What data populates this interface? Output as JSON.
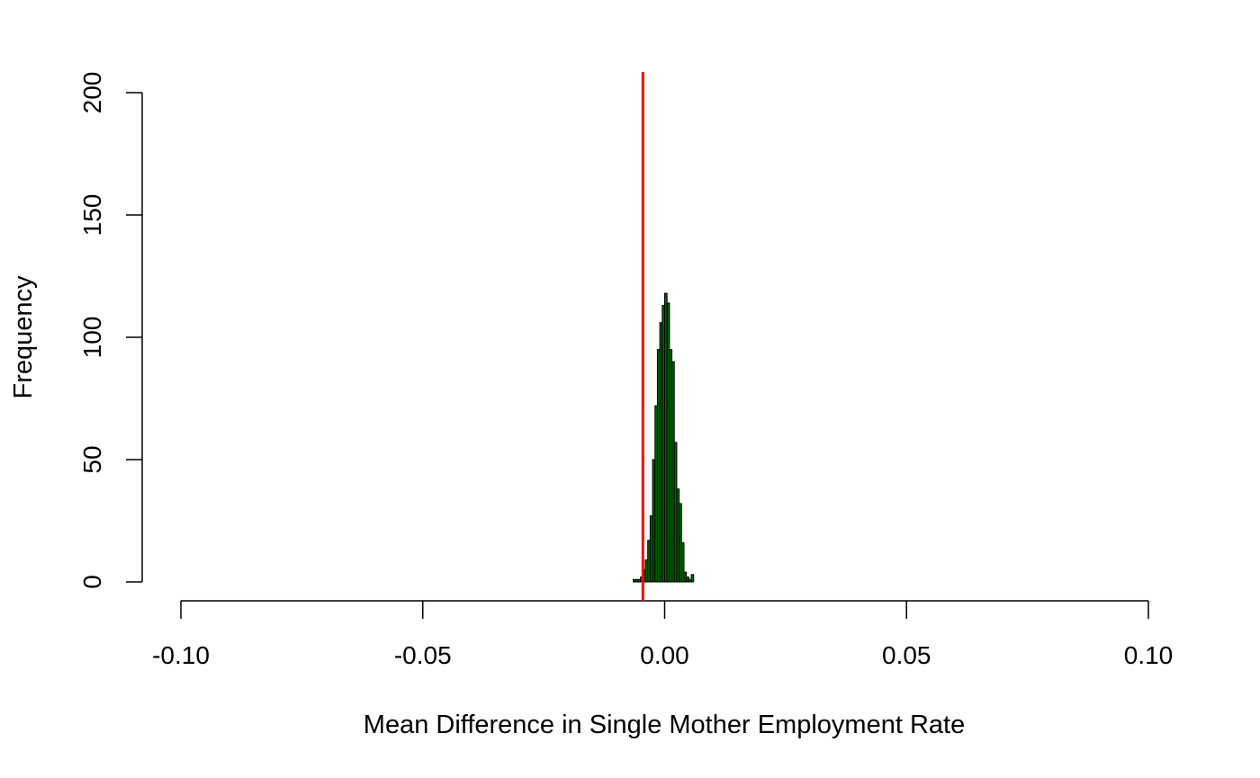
{
  "chart_data": {
    "type": "bar",
    "title": "",
    "xlabel": "Mean Difference in Single Mother Employment Rate",
    "ylabel": "Frequency",
    "xlim": [
      -0.1,
      0.1
    ],
    "ylim": [
      0,
      200
    ],
    "x_ticks": [
      "-0.10",
      "-0.05",
      "0.00",
      "0.05",
      "0.10"
    ],
    "x_tick_values": [
      -0.1,
      -0.05,
      0.0,
      0.05,
      0.1
    ],
    "y_ticks": [
      "0",
      "50",
      "100",
      "150",
      "200"
    ],
    "y_tick_values": [
      0,
      50,
      100,
      150,
      200
    ],
    "bin_width": 0.0005,
    "bins": [
      {
        "x0": -0.0065,
        "x1": -0.006,
        "count": 1
      },
      {
        "x0": -0.006,
        "x1": -0.0055,
        "count": 1
      },
      {
        "x0": -0.0055,
        "x1": -0.005,
        "count": 1
      },
      {
        "x0": -0.005,
        "x1": -0.0045,
        "count": 2
      },
      {
        "x0": -0.0045,
        "x1": -0.004,
        "count": 5
      },
      {
        "x0": -0.004,
        "x1": -0.0035,
        "count": 9
      },
      {
        "x0": -0.0035,
        "x1": -0.003,
        "count": 17
      },
      {
        "x0": -0.003,
        "x1": -0.0025,
        "count": 27
      },
      {
        "x0": -0.0025,
        "x1": -0.002,
        "count": 50
      },
      {
        "x0": -0.002,
        "x1": -0.0015,
        "count": 72
      },
      {
        "x0": -0.0015,
        "x1": -0.001,
        "count": 95
      },
      {
        "x0": -0.001,
        "x1": -0.0005,
        "count": 106
      },
      {
        "x0": -0.0005,
        "x1": 0.0,
        "count": 113
      },
      {
        "x0": 0.0,
        "x1": 0.0005,
        "count": 118
      },
      {
        "x0": 0.0005,
        "x1": 0.001,
        "count": 114
      },
      {
        "x0": 0.001,
        "x1": 0.0015,
        "count": 95
      },
      {
        "x0": 0.0015,
        "x1": 0.002,
        "count": 90
      },
      {
        "x0": 0.002,
        "x1": 0.0025,
        "count": 57
      },
      {
        "x0": 0.0025,
        "x1": 0.003,
        "count": 38
      },
      {
        "x0": 0.003,
        "x1": 0.0035,
        "count": 32
      },
      {
        "x0": 0.0035,
        "x1": 0.004,
        "count": 16
      },
      {
        "x0": 0.004,
        "x1": 0.0045,
        "count": 4
      },
      {
        "x0": 0.0045,
        "x1": 0.005,
        "count": 2
      },
      {
        "x0": 0.005,
        "x1": 0.0055,
        "count": 1
      },
      {
        "x0": 0.0055,
        "x1": 0.006,
        "count": 3
      }
    ],
    "bar_fill": "#006400",
    "bar_stroke": "#000000",
    "reference_line": {
      "x": -0.0045,
      "color": "#ff0000"
    },
    "grid": false,
    "legend": "none"
  }
}
